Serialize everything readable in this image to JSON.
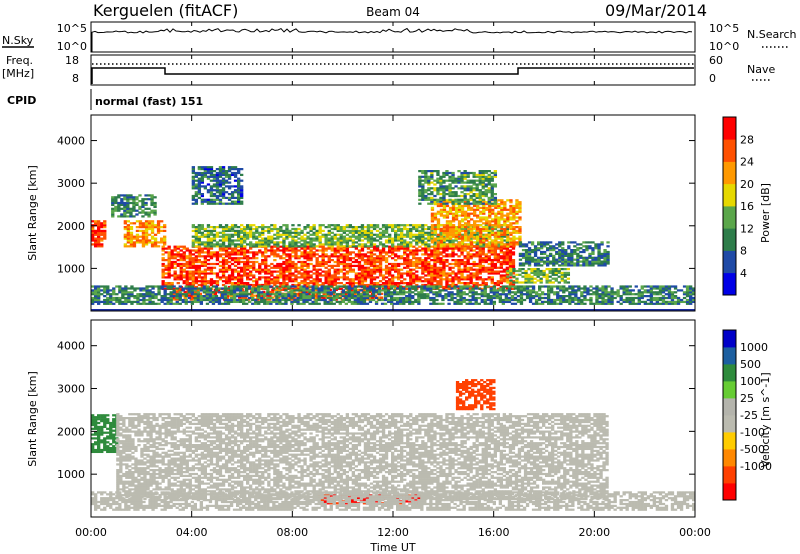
{
  "header": {
    "station": "Kerguelen (fitACF)",
    "beam": "Beam 04",
    "date": "09/Mar/2014"
  },
  "nsky_panel": {
    "left_label": "N.Sky",
    "left_ticks": [
      "10^5",
      "10^0"
    ],
    "right_ticks": [
      "10^5",
      "10^0"
    ],
    "right_label": "N.Search"
  },
  "freq_panel": {
    "left_label_1": "Freq.",
    "left_label_2": "[MHz]",
    "left_ticks": [
      "18",
      "8"
    ],
    "right_ticks": [
      "60",
      "0"
    ],
    "right_label": "Nave"
  },
  "cpid": {
    "label": "CPID",
    "value": "normal (fast) 151"
  },
  "colors": {
    "power": [
      "#0000e6",
      "#1f4aa6",
      "#2e7d4a",
      "#5aa64a",
      "#e6d800",
      "#ff9900",
      "#ff5000",
      "#ff0000"
    ],
    "velocity": [
      "#ff0000",
      "#ff4000",
      "#ff8800",
      "#ffcc00",
      "#bbbbb0",
      "#b4b4ac",
      "#66cc33",
      "#2e8b3c",
      "#1c5fa0",
      "#0000c8"
    ]
  },
  "chart_data": [
    {
      "type": "heatmap",
      "name": "power",
      "xlabel": "",
      "ylabel": "Slant Range [km]",
      "x_range_hours": [
        0,
        24
      ],
      "ylim": [
        0,
        4600
      ],
      "yticks": [
        "1000",
        "2000",
        "3000",
        "4000"
      ],
      "colorbar_label": "Power [dB]",
      "colorbar_ticks": [
        "4",
        "8",
        "12",
        "16",
        "20",
        "24",
        "28"
      ],
      "colorbar_range": [
        0,
        32
      ],
      "bands": [
        {
          "t0": 0.0,
          "t1": 0.6,
          "r0": 1500,
          "r1": 2100,
          "v": 28
        },
        {
          "t0": 1.3,
          "t1": 2.9,
          "r0": 1500,
          "r1": 2100,
          "v": 22
        },
        {
          "t0": 0.8,
          "t1": 2.5,
          "r0": 2200,
          "r1": 2700,
          "v": 10
        },
        {
          "t0": 2.8,
          "t1": 16.8,
          "r0": 500,
          "r1": 1500,
          "v": 27
        },
        {
          "t0": 3.2,
          "t1": 11.5,
          "r0": 250,
          "r1": 520,
          "v": 26
        },
        {
          "t0": 4.0,
          "t1": 16.5,
          "r0": 1500,
          "r1": 2000,
          "v": 14
        },
        {
          "t0": 13.5,
          "t1": 17.0,
          "r0": 1500,
          "r1": 2600,
          "v": 22
        },
        {
          "t0": 17.0,
          "t1": 20.5,
          "r0": 1050,
          "r1": 1600,
          "v": 9
        },
        {
          "t0": 16.5,
          "t1": 19.0,
          "r0": 650,
          "r1": 1000,
          "v": 14
        },
        {
          "t0": 4.0,
          "t1": 6.0,
          "r0": 2500,
          "r1": 3400,
          "v": 8
        },
        {
          "t0": 13.0,
          "t1": 16.0,
          "r0": 2500,
          "r1": 3300,
          "v": 12
        },
        {
          "t0": 0.0,
          "t1": 24.0,
          "r0": 150,
          "r1": 600,
          "v": 10
        }
      ]
    },
    {
      "type": "heatmap",
      "name": "velocity",
      "xlabel": "Time UT",
      "ylabel": "Slant Range [km]",
      "x_range_hours": [
        0,
        24
      ],
      "xticks": [
        "00:00",
        "04:00",
        "08:00",
        "12:00",
        "16:00",
        "20:00",
        "00:00"
      ],
      "ylim": [
        0,
        4600
      ],
      "yticks": [
        "1000",
        "2000",
        "3000",
        "4000"
      ],
      "colorbar_label": "Velocity [m s^-1]",
      "colorbar_ticks": [
        "1000",
        "500",
        "100",
        "25",
        "-25",
        "-100",
        "-500",
        "-1000"
      ],
      "bands": [
        {
          "t0": 0.0,
          "t1": 1.0,
          "r0": 1500,
          "r1": 2400,
          "v": 300
        },
        {
          "t0": 1.0,
          "t1": 20.5,
          "r0": 400,
          "r1": 2400,
          "v": 0
        },
        {
          "t0": 14.5,
          "t1": 16.0,
          "r0": 2500,
          "r1": 3200,
          "v": -300
        },
        {
          "t0": 9.0,
          "t1": 13.0,
          "r0": 300,
          "r1": 500,
          "v": -600
        },
        {
          "t0": 0.0,
          "t1": 24.0,
          "r0": 150,
          "r1": 600,
          "v": 0
        }
      ]
    }
  ]
}
